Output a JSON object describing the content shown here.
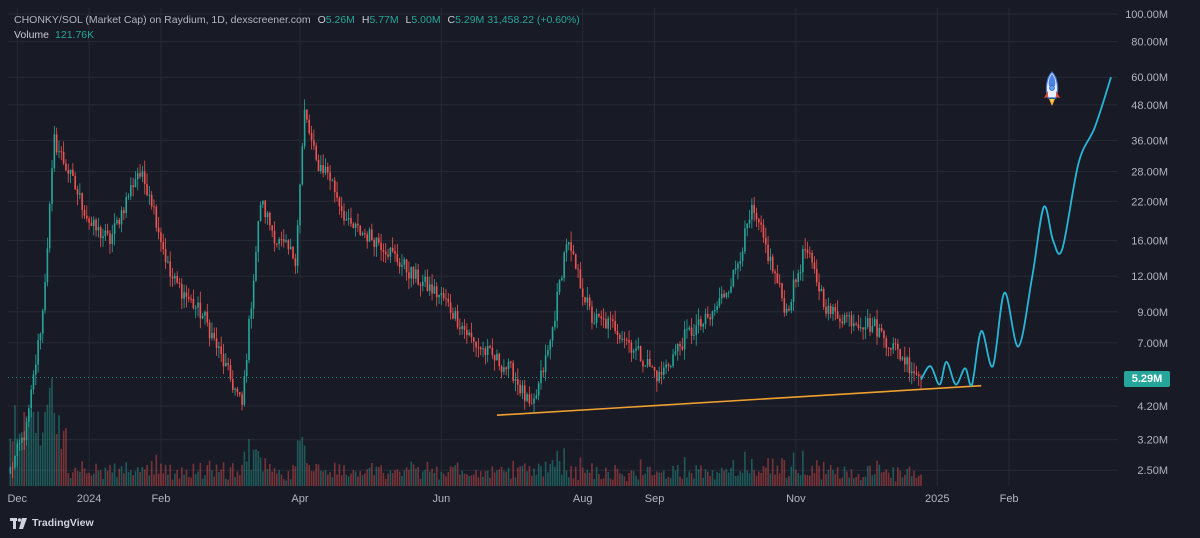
{
  "legend": {
    "symbol": "CHONKY/SOL (Market Cap) on Raydium, 1D, dexscreener.com",
    "open_key": "O",
    "open": "5.26M",
    "high_key": "H",
    "high": "5.77M",
    "low_key": "L",
    "low": "5.00M",
    "close_key": "C",
    "close": "5.29M",
    "change": "31,458.22 (+0.60%)",
    "volume_label": "Volume",
    "volume_value": "121.76K"
  },
  "price_tag": "5.29M",
  "brand": "TradingView",
  "colors": {
    "background": "#181a25",
    "up": "#26a69a",
    "down": "#ef5350",
    "trendline": "#f0a030",
    "projection": "#29b6d6",
    "grid": "#262a36"
  },
  "chart_data": {
    "type": "candlestick",
    "y_scale": "log",
    "ylim": [
      2200000,
      105000000
    ],
    "x_axis": {
      "ticks": [
        "Dec",
        "2024",
        "Feb",
        "Apr",
        "Jun",
        "Aug",
        "Sep",
        "Nov",
        "2025",
        "Feb"
      ],
      "tick_dates": [
        "2023-12-01",
        "2024-01-01",
        "2024-02-01",
        "2024-04-01",
        "2024-06-01",
        "2024-08-01",
        "2024-09-01",
        "2024-11-01",
        "2025-01-01",
        "2025-02-01"
      ],
      "range": [
        "2023-11-27",
        "2025-03-20"
      ]
    },
    "y_axis": {
      "ticks": [
        "100.00M",
        "80.00M",
        "60.00M",
        "48.00M",
        "36.00M",
        "28.00M",
        "22.00M",
        "16.00M",
        "12.00M",
        "9.00M",
        "7.00M",
        "5.29M",
        "4.20M",
        "3.20M",
        "2.50M"
      ],
      "tick_values": [
        100000000,
        80000000,
        60000000,
        48000000,
        36000000,
        28000000,
        22000000,
        16000000,
        12000000,
        9000000,
        7000000,
        5290000,
        4200000,
        3200000,
        2500000
      ]
    },
    "last_price": 5290000,
    "price_key_points": [
      [
        "2023-11-28",
        2500000
      ],
      [
        "2023-12-05",
        3500000
      ],
      [
        "2023-12-12",
        9000000
      ],
      [
        "2023-12-17",
        36000000
      ],
      [
        "2023-12-23",
        28000000
      ],
      [
        "2024-01-02",
        18000000
      ],
      [
        "2024-01-10",
        16000000
      ],
      [
        "2024-01-22",
        28000000
      ],
      [
        "2024-01-27",
        24000000
      ],
      [
        "2024-02-05",
        12000000
      ],
      [
        "2024-02-20",
        8500000
      ],
      [
        "2024-03-03",
        5000000
      ],
      [
        "2024-03-07",
        4200000
      ],
      [
        "2024-03-10",
        8000000
      ],
      [
        "2024-03-15",
        22000000
      ],
      [
        "2024-03-22",
        16000000
      ],
      [
        "2024-03-30",
        14000000
      ],
      [
        "2024-04-03",
        45000000
      ],
      [
        "2024-04-08",
        30000000
      ],
      [
        "2024-04-13",
        28000000
      ],
      [
        "2024-04-22",
        18000000
      ],
      [
        "2024-05-05",
        16000000
      ],
      [
        "2024-05-20",
        12000000
      ],
      [
        "2024-06-02",
        10000000
      ],
      [
        "2024-06-15",
        7000000
      ],
      [
        "2024-07-02",
        5500000
      ],
      [
        "2024-07-10",
        4000000
      ],
      [
        "2024-07-18",
        7000000
      ],
      [
        "2024-07-25",
        16000000
      ],
      [
        "2024-08-05",
        8500000
      ],
      [
        "2024-08-15",
        8000000
      ],
      [
        "2024-09-03",
        5300000
      ],
      [
        "2024-09-15",
        7500000
      ],
      [
        "2024-09-25",
        8500000
      ],
      [
        "2024-10-05",
        12000000
      ],
      [
        "2024-10-13",
        20000000
      ],
      [
        "2024-10-17",
        17000000
      ],
      [
        "2024-10-28",
        9000000
      ],
      [
        "2024-11-05",
        15000000
      ],
      [
        "2024-11-15",
        9000000
      ],
      [
        "2024-11-25",
        8500000
      ],
      [
        "2024-12-05",
        8000000
      ],
      [
        "2024-12-15",
        6500000
      ],
      [
        "2024-12-25",
        5290000
      ]
    ],
    "trendline": [
      [
        "2024-06-25",
        3900000
      ],
      [
        "2025-01-20",
        4950000
      ]
    ],
    "projection": [
      [
        "2024-12-25",
        5200000
      ],
      [
        "2024-12-29",
        5800000
      ],
      [
        "2025-01-02",
        5000000
      ],
      [
        "2025-01-05",
        6000000
      ],
      [
        "2025-01-09",
        5000000
      ],
      [
        "2025-01-13",
        5700000
      ],
      [
        "2025-01-16",
        5000000
      ],
      [
        "2025-01-20",
        7700000
      ],
      [
        "2025-01-25",
        5800000
      ],
      [
        "2025-01-30",
        10500000
      ],
      [
        "2025-02-05",
        6800000
      ],
      [
        "2025-02-11",
        12000000
      ],
      [
        "2025-02-16",
        21000000
      ],
      [
        "2025-02-20",
        16000000
      ],
      [
        "2025-02-24",
        15000000
      ],
      [
        "2025-03-03",
        30000000
      ],
      [
        "2025-03-10",
        40000000
      ],
      [
        "2025-03-17",
        60000000
      ]
    ]
  }
}
